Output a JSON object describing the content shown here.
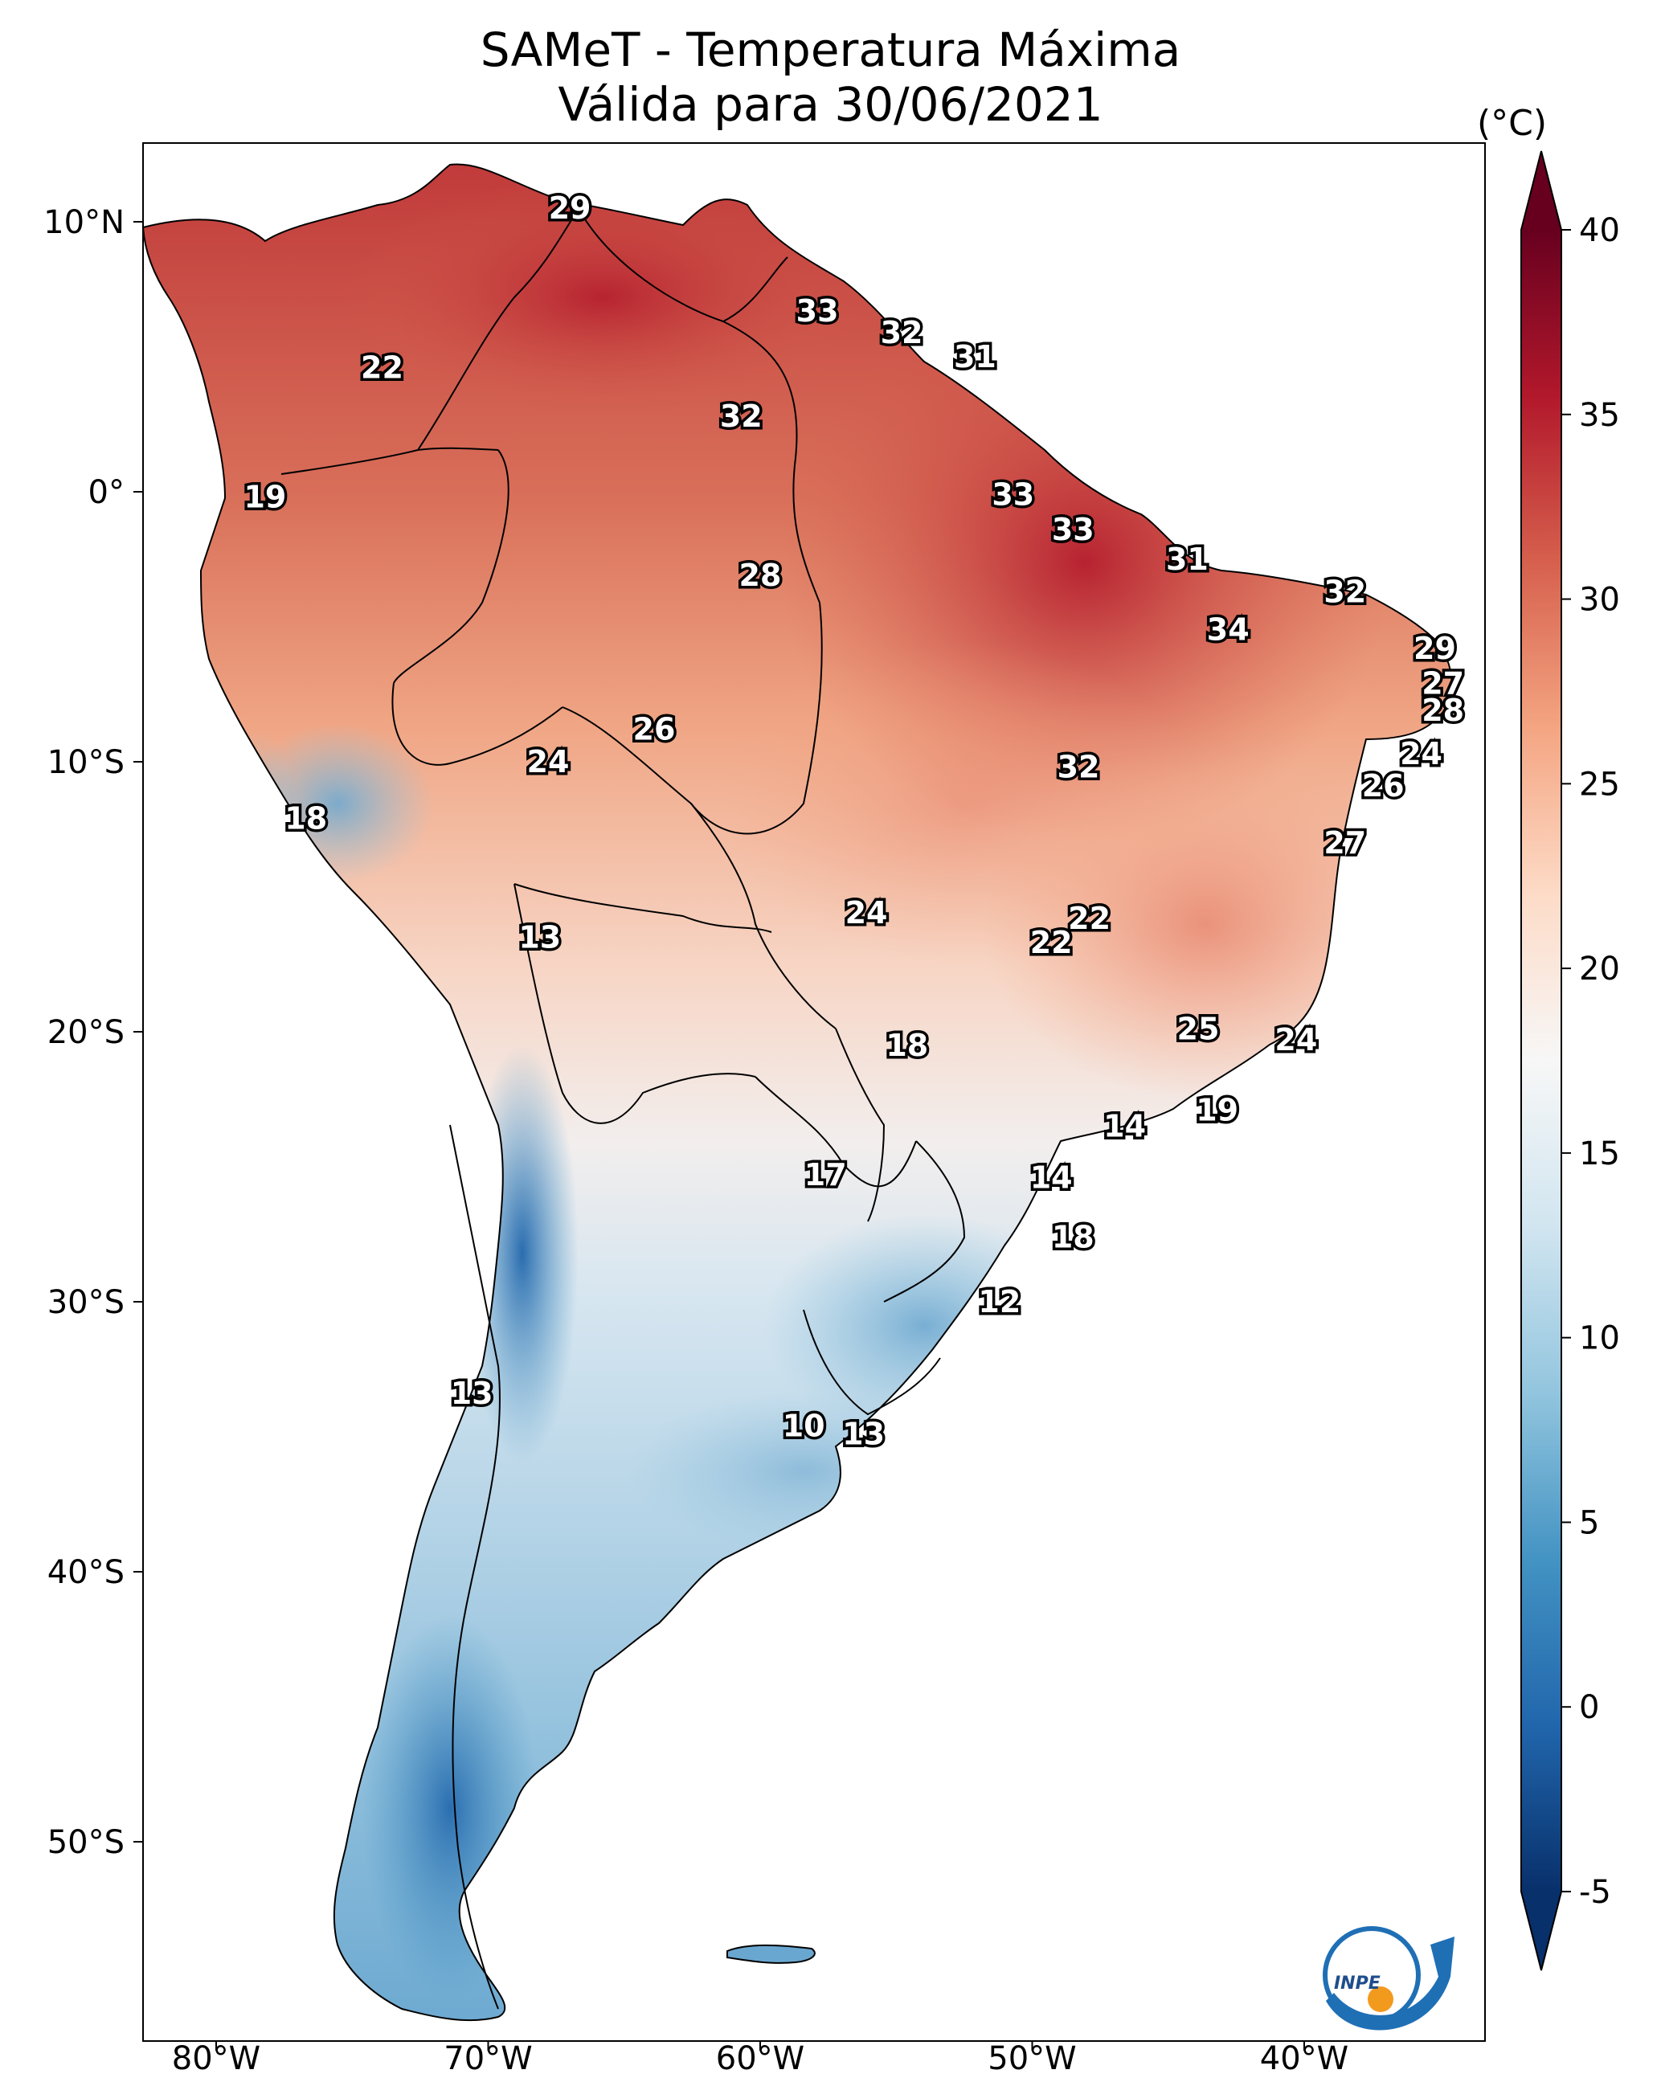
{
  "title": {
    "line1": "SAMeT - Temperatura Máxima",
    "line2": "Válida para 30/06/2021"
  },
  "colorbar": {
    "unit": "(°C)",
    "min": -5,
    "max": 40,
    "ticks": [
      "-5",
      "0",
      "5",
      "10",
      "15",
      "20",
      "25",
      "30",
      "35",
      "40"
    ],
    "colors": [
      "#08306b",
      "#2166ac",
      "#4393c3",
      "#92c5de",
      "#d1e5f0",
      "#f7f7f7",
      "#fddbc7",
      "#f4a582",
      "#d6604d",
      "#b2182b",
      "#67001f"
    ]
  },
  "axes": {
    "lon_ticks": [
      "80°W",
      "70°W",
      "60°W",
      "50°W",
      "40°W"
    ],
    "lat_ticks": [
      "10°N",
      "0°",
      "10°S",
      "20°S",
      "30°S",
      "40°S",
      "50°S"
    ]
  },
  "stations": [
    {
      "label": "29",
      "lon": -67.0,
      "lat": 10.5
    },
    {
      "label": "33",
      "lon": -57.9,
      "lat": 6.7
    },
    {
      "label": "32",
      "lon": -54.8,
      "lat": 5.9
    },
    {
      "label": "31",
      "lon": -52.1,
      "lat": 5.0
    },
    {
      "label": "22",
      "lon": -73.9,
      "lat": 4.6
    },
    {
      "label": "32",
      "lon": -60.7,
      "lat": 2.8
    },
    {
      "label": "19",
      "lon": -78.2,
      "lat": -0.2
    },
    {
      "label": "33",
      "lon": -50.7,
      "lat": -0.1
    },
    {
      "label": "33",
      "lon": -48.5,
      "lat": -1.4
    },
    {
      "label": "31",
      "lon": -44.3,
      "lat": -2.5
    },
    {
      "label": "28",
      "lon": -60.0,
      "lat": -3.1
    },
    {
      "label": "32",
      "lon": -38.5,
      "lat": -3.7
    },
    {
      "label": "34",
      "lon": -42.8,
      "lat": -5.1
    },
    {
      "label": "29",
      "lon": -35.2,
      "lat": -5.8
    },
    {
      "label": "27",
      "lon": -34.9,
      "lat": -7.1
    },
    {
      "label": "28",
      "lon": -34.9,
      "lat": -8.1
    },
    {
      "label": "26",
      "lon": -63.9,
      "lat": -8.8
    },
    {
      "label": "24",
      "lon": -67.8,
      "lat": -10.0
    },
    {
      "label": "24",
      "lon": -35.7,
      "lat": -9.7
    },
    {
      "label": "32",
      "lon": -48.3,
      "lat": -10.2
    },
    {
      "label": "26",
      "lon": -37.1,
      "lat": -10.9
    },
    {
      "label": "18",
      "lon": -76.7,
      "lat": -12.1
    },
    {
      "label": "27",
      "lon": -38.5,
      "lat": -13.0
    },
    {
      "label": "22",
      "lon": -47.9,
      "lat": -15.8
    },
    {
      "label": "24",
      "lon": -56.1,
      "lat": -15.6
    },
    {
      "label": "22",
      "lon": -49.3,
      "lat": -16.7
    },
    {
      "label": "13",
      "lon": -68.1,
      "lat": -16.5
    },
    {
      "label": "18",
      "lon": -54.6,
      "lat": -20.5
    },
    {
      "label": "25",
      "lon": -43.9,
      "lat": -19.9
    },
    {
      "label": "24",
      "lon": -40.3,
      "lat": -20.3
    },
    {
      "label": "19",
      "lon": -43.2,
      "lat": -22.9
    },
    {
      "label": "14",
      "lon": -46.6,
      "lat": -23.5
    },
    {
      "label": "14",
      "lon": -49.3,
      "lat": -25.4
    },
    {
      "label": "17",
      "lon": -57.6,
      "lat": -25.3
    },
    {
      "label": "18",
      "lon": -48.5,
      "lat": -27.6
    },
    {
      "label": "12",
      "lon": -51.2,
      "lat": -30.0
    },
    {
      "label": "13",
      "lon": -70.6,
      "lat": -33.4
    },
    {
      "label": "10",
      "lon": -58.4,
      "lat": -34.6
    },
    {
      "label": "13",
      "lon": -56.2,
      "lat": -34.9
    }
  ],
  "logo": {
    "text": "INPE"
  }
}
